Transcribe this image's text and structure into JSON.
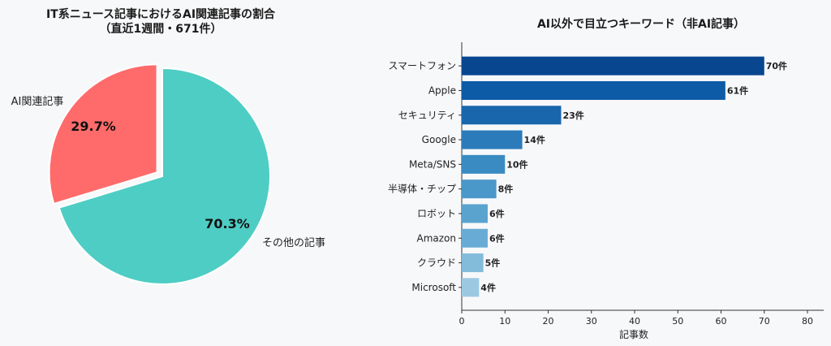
{
  "chart_data": [
    {
      "type": "pie",
      "title_line1": "IT系ニュース記事におけるAI関連記事の割合",
      "title_line2": "（直近1週間・671件）",
      "slices": [
        {
          "label": "AI関連記事",
          "percent_label": "29.7%",
          "value": 29.7,
          "color": "#ff6b6b"
        },
        {
          "label": "その他の記事",
          "percent_label": "70.3%",
          "value": 70.3,
          "color": "#4ecdc4"
        }
      ]
    },
    {
      "type": "bar",
      "orientation": "horizontal",
      "title": "AI以外で目立つキーワード（非AI記事）",
      "categories": [
        "スマートフォン",
        "Apple",
        "セキュリティ",
        "Google",
        "Meta/SNS",
        "半導体・チップ",
        "ロボット",
        "Amazon",
        "クラウド",
        "Microsoft"
      ],
      "values": [
        70,
        61,
        23,
        14,
        10,
        8,
        6,
        6,
        5,
        4
      ],
      "value_labels": [
        "70件",
        "61件",
        "23件",
        "14件",
        "10件",
        "8件",
        "6件",
        "6件",
        "5件",
        "4件"
      ],
      "colors": [
        "#08468f",
        "#0d5aa7",
        "#1966ad",
        "#2b7bba",
        "#3a8bc2",
        "#4a98c9",
        "#5aa3cf",
        "#68acd5",
        "#83bbdb",
        "#9cc9e1"
      ],
      "xlabel": "記事数",
      "xlim": [
        0,
        80
      ],
      "xticks": [
        "0",
        "10",
        "20",
        "30",
        "40",
        "50",
        "60",
        "70",
        "80"
      ]
    }
  ]
}
